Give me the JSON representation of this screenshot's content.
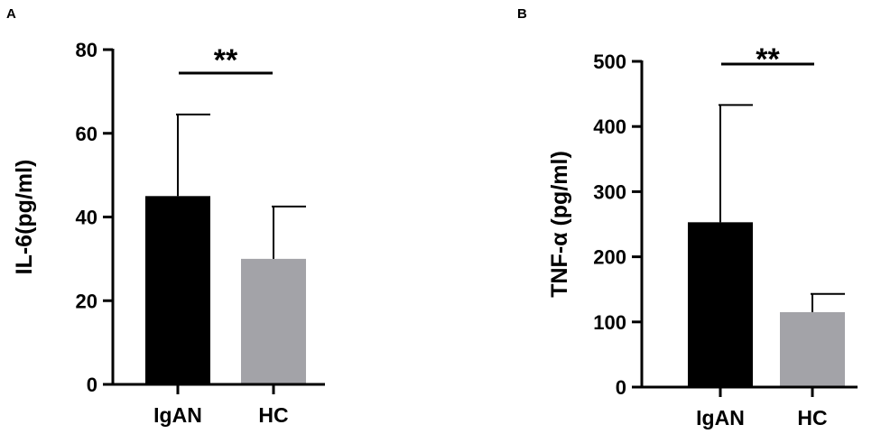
{
  "chart_data": [
    {
      "type": "bar",
      "panel": "A",
      "categories": [
        "IgAN",
        "HC"
      ],
      "values": [
        45,
        30
      ],
      "error_upper": [
        64.5,
        42.5
      ],
      "colors": [
        "#000000",
        "#a3a3a8"
      ],
      "ylabel": "IL-6(pg/ml)",
      "ylim": [
        0,
        80
      ],
      "yticks": [
        0,
        20,
        40,
        60,
        80
      ],
      "ytick_labels": [
        "0",
        "20",
        "40",
        "60",
        "80"
      ],
      "significance": "**",
      "grid": false
    },
    {
      "type": "bar",
      "panel": "B",
      "categories": [
        "IgAN",
        "HC"
      ],
      "values": [
        253,
        115
      ],
      "error_upper": [
        433,
        143
      ],
      "colors": [
        "#000000",
        "#a3a3a8"
      ],
      "ylabel": "TNF-α (pg/ml)",
      "ylim": [
        0,
        500
      ],
      "yticks": [
        0,
        100,
        200,
        300,
        400,
        500
      ],
      "ytick_labels": [
        "0",
        "100",
        "200",
        "300",
        "400",
        "500"
      ],
      "significance": "**",
      "grid": false
    }
  ]
}
